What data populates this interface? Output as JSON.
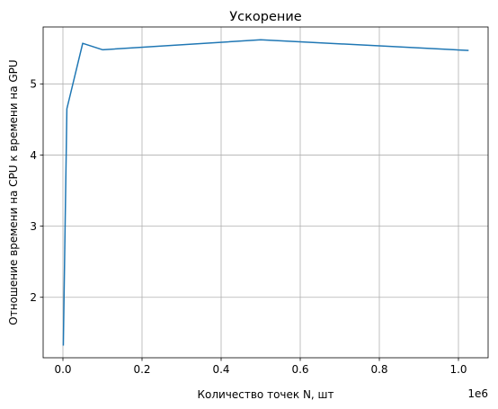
{
  "chart_data": {
    "type": "line",
    "title": "Ускорение",
    "xlabel": "Количество точек N, шт",
    "ylabel": "Отношение времени на CPU к времени на GPU",
    "x_offset_label": "1e6",
    "xlim": [
      -0.05,
      1.075
    ],
    "ylim": [
      1.15,
      5.8
    ],
    "x_ticks": [
      0.0,
      0.2,
      0.4,
      0.6,
      0.8,
      1.0
    ],
    "x_tick_labels": [
      "0.0",
      "0.2",
      "0.4",
      "0.6",
      "0.8",
      "1.0"
    ],
    "y_ticks": [
      2,
      3,
      4,
      5
    ],
    "y_tick_labels": [
      "2",
      "3",
      "4",
      "5"
    ],
    "grid": true,
    "series": [
      {
        "color": "#1f77b4",
        "x": [
          0.001,
          0.01,
          0.05,
          0.1,
          0.5,
          1.024
        ],
        "y": [
          1.33,
          4.65,
          5.57,
          5.48,
          5.62,
          5.47
        ]
      }
    ]
  }
}
